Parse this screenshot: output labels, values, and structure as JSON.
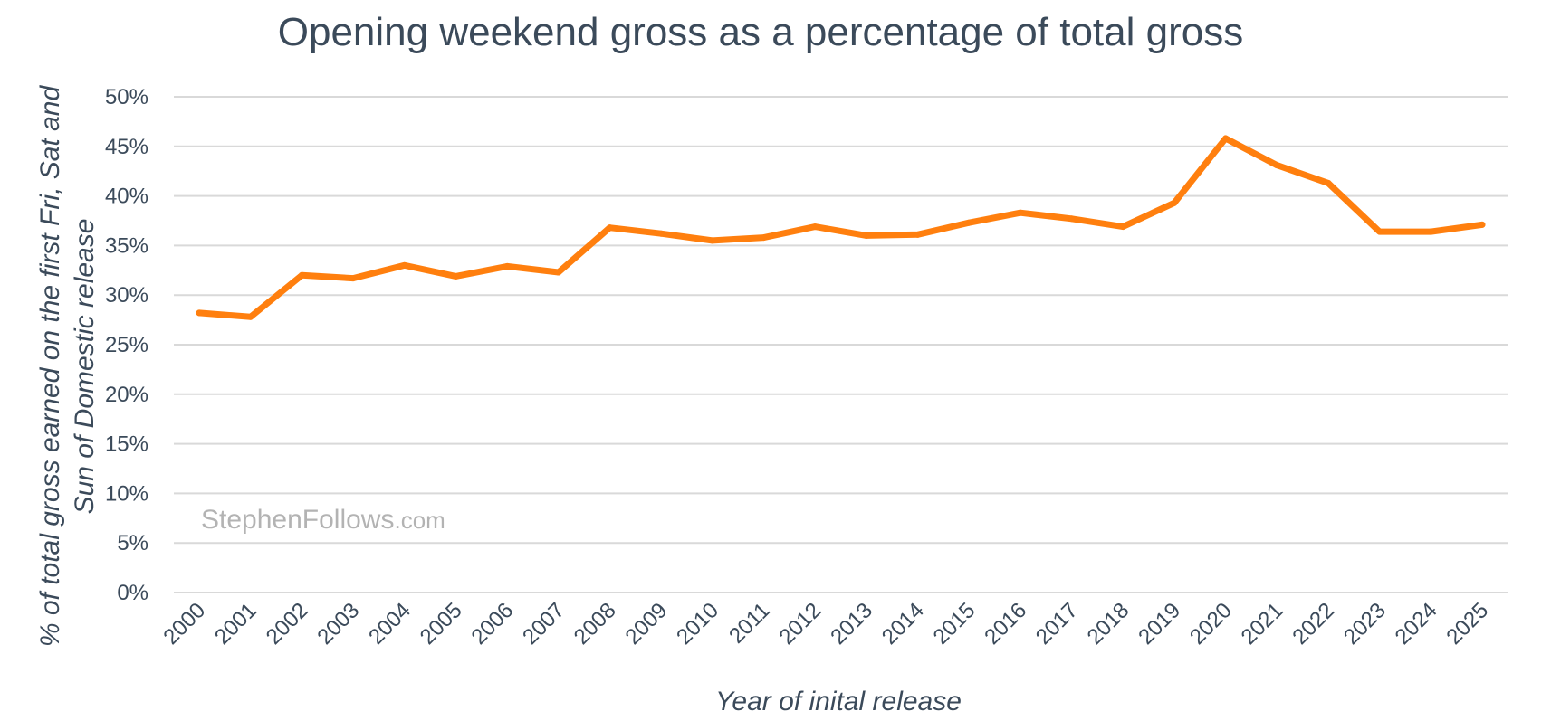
{
  "chart_data": {
    "type": "line",
    "title": "Opening weekend gross as a percentage of total gross",
    "xlabel": "Year of inital release",
    "ylabel_lines": [
      "% of total gross earned on the first Fri, Sat and",
      "Sun of Domestic release"
    ],
    "x": [
      "2000",
      "2001",
      "2002",
      "2003",
      "2004",
      "2005",
      "2006",
      "2007",
      "2008",
      "2009",
      "2010",
      "2011",
      "2012",
      "2013",
      "2014",
      "2015",
      "2016",
      "2017",
      "2018",
      "2019",
      "2020",
      "2021",
      "2022",
      "2023",
      "2024",
      "2025"
    ],
    "series": [
      {
        "values": [
          28.2,
          27.8,
          32.0,
          31.7,
          33.0,
          31.9,
          32.9,
          32.3,
          36.8,
          36.2,
          35.5,
          35.8,
          36.9,
          36.0,
          36.1,
          37.3,
          38.3,
          37.7,
          36.9,
          39.3,
          45.8,
          43.1,
          41.3,
          36.4,
          36.4,
          37.1
        ],
        "color": "#ff7f0e"
      }
    ],
    "ylim": [
      0,
      50
    ],
    "yticks": [
      "0%",
      "5%",
      "10%",
      "15%",
      "20%",
      "25%",
      "30%",
      "35%",
      "40%",
      "45%",
      "50%"
    ],
    "grid": true,
    "legend": "none"
  },
  "watermark": {
    "main": "StephenFollows",
    "sub": ".com"
  }
}
